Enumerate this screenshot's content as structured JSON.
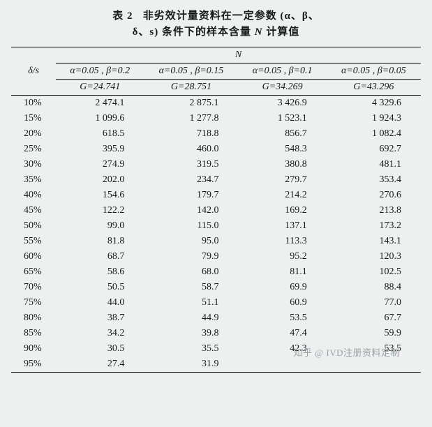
{
  "title": {
    "label": "表 2",
    "line1": "非劣效计量资料在一定参数 (α、β、",
    "line2": "δ、s) 条件下的样本含量",
    "nvar": "N",
    "tail": "计算值"
  },
  "header": {
    "row_header": "δ/s",
    "N_label": "N",
    "cols": [
      {
        "ab": "α=0.05 , β=0.2",
        "G": "G=24.741"
      },
      {
        "ab": "α=0.05 , β=0.15",
        "G": "G=28.751"
      },
      {
        "ab": "α=0.05 , β=0.1",
        "G": "G=34.269"
      },
      {
        "ab": "α=0.05 , β=0.05",
        "G": "G=43.296"
      }
    ]
  },
  "rows": [
    {
      "ds": "10%",
      "v": [
        "2 474.1",
        "2 875.1",
        "3 426.9",
        "4 329.6"
      ]
    },
    {
      "ds": "15%",
      "v": [
        "1 099.6",
        "1 277.8",
        "1 523.1",
        "1 924.3"
      ]
    },
    {
      "ds": "20%",
      "v": [
        "618.5",
        "718.8",
        "856.7",
        "1 082.4"
      ]
    },
    {
      "ds": "25%",
      "v": [
        "395.9",
        "460.0",
        "548.3",
        "692.7"
      ]
    },
    {
      "ds": "30%",
      "v": [
        "274.9",
        "319.5",
        "380.8",
        "481.1"
      ]
    },
    {
      "ds": "35%",
      "v": [
        "202.0",
        "234.7",
        "279.7",
        "353.4"
      ]
    },
    {
      "ds": "40%",
      "v": [
        "154.6",
        "179.7",
        "214.2",
        "270.6"
      ]
    },
    {
      "ds": "45%",
      "v": [
        "122.2",
        "142.0",
        "169.2",
        "213.8"
      ]
    },
    {
      "ds": "50%",
      "v": [
        "99.0",
        "115.0",
        "137.1",
        "173.2"
      ]
    },
    {
      "ds": "55%",
      "v": [
        "81.8",
        "95.0",
        "113.3",
        "143.1"
      ]
    },
    {
      "ds": "60%",
      "v": [
        "68.7",
        "79.9",
        "95.2",
        "120.3"
      ]
    },
    {
      "ds": "65%",
      "v": [
        "58.6",
        "68.0",
        "81.1",
        "102.5"
      ]
    },
    {
      "ds": "70%",
      "v": [
        "50.5",
        "58.7",
        "69.9",
        "88.4"
      ]
    },
    {
      "ds": "75%",
      "v": [
        "44.0",
        "51.1",
        "60.9",
        "77.0"
      ]
    },
    {
      "ds": "80%",
      "v": [
        "38.7",
        "44.9",
        "53.5",
        "67.7"
      ]
    },
    {
      "ds": "85%",
      "v": [
        "34.2",
        "39.8",
        "47.4",
        "59.9"
      ]
    },
    {
      "ds": "90%",
      "v": [
        "30.5",
        "35.5",
        "42.3",
        "53.5"
      ]
    },
    {
      "ds": "95%",
      "v": [
        "27.4",
        "31.9",
        "",
        ""
      ]
    }
  ],
  "watermark": "知乎 @ IVD注册资料定制",
  "style": {
    "background": "#eef0f0",
    "text_color": "#1a1a1a",
    "border_color": "#000000",
    "font_family": "SimSun / Times New Roman serif",
    "title_fontsize_pt": 15,
    "body_fontsize_pt": 14
  }
}
